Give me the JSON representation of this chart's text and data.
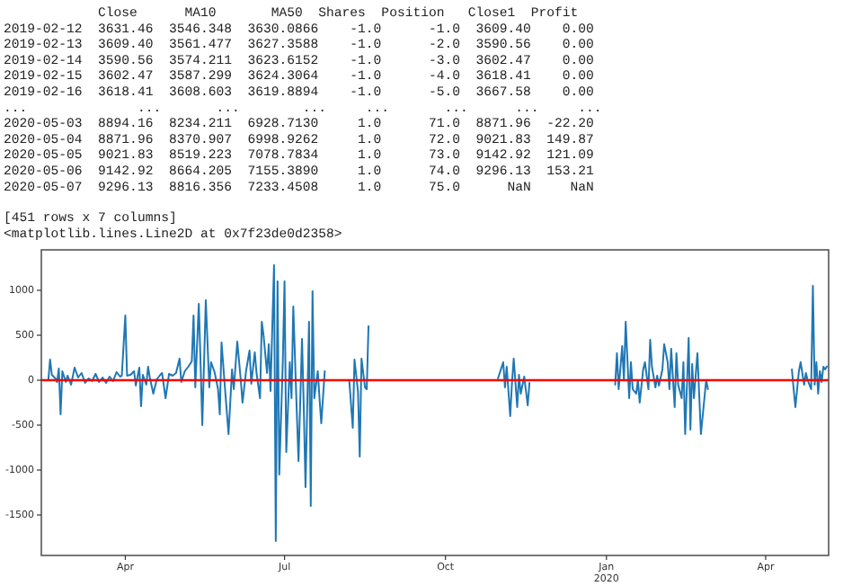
{
  "chart_data": {
    "type": "line",
    "annotations": [
      "            Close      MA10       MA50  Shares  Position   Close1  Profit",
      "2019-02-12  3631.46  3546.348  3630.0866    -1.0      -1.0  3609.40    0.00",
      "2019-02-13  3609.40  3561.477  3627.3588    -1.0      -2.0  3590.56    0.00",
      "2019-02-14  3590.56  3574.211  3623.6152    -1.0      -3.0  3602.47    0.00",
      "2019-02-15  3602.47  3587.299  3624.3064    -1.0      -4.0  3618.41    0.00",
      "2019-02-16  3618.41  3608.603  3619.8894    -1.0      -5.0  3667.58    0.00",
      "...              ...       ...        ...     ...       ...      ...     ...",
      "2020-05-03  8894.16  8234.211  6928.7130     1.0      71.0  8871.96  -22.20",
      "2020-05-04  8871.96  8370.907  6998.9262     1.0      72.0  9021.83  149.87",
      "2020-05-05  9021.83  8519.223  7078.7834     1.0      73.0  9142.92  121.09",
      "2020-05-06  9142.92  8664.205  7155.3890     1.0      74.0  9296.13  153.21",
      "2020-05-07  9296.13  8816.356  7233.4508     1.0      75.0      NaN     NaN",
      "[451 rows x 7 columns]",
      "<matplotlib.lines.Line2D at 0x7f23de0d2358>"
    ],
    "x": [
      "2019-02-12",
      "2019-02-13",
      "2019-02-14",
      "2019-02-15",
      "2019-02-16",
      "2019-02-17",
      "2019-02-18",
      "2019-02-20",
      "2019-02-21",
      "2019-02-22",
      "2019-02-23",
      "2019-02-24",
      "2019-02-26",
      "2019-02-27",
      "2019-03-01",
      "2019-03-03",
      "2019-03-05",
      "2019-03-07",
      "2019-03-09",
      "2019-03-11",
      "2019-03-13",
      "2019-03-15",
      "2019-03-17",
      "2019-03-19",
      "2019-03-21",
      "2019-03-23",
      "2019-03-25",
      "2019-03-27",
      "2019-03-29",
      "2019-03-30",
      "2019-04-01",
      "2019-04-02",
      "2019-04-04",
      "2019-04-06",
      "2019-04-07",
      "2019-04-09",
      "2019-04-10",
      "2019-04-11",
      "2019-04-13",
      "2019-04-14",
      "2019-04-15",
      "2019-04-17",
      "2019-04-19",
      "2019-04-21",
      "2019-04-22",
      "2019-04-24",
      "2019-04-26",
      "2019-04-28",
      "2019-04-30",
      "2019-05-02",
      "2019-05-03",
      "2019-05-05",
      "2019-05-07",
      "2019-05-09",
      "2019-05-10",
      "2019-05-11",
      "2019-05-13",
      "2019-05-14",
      "2019-05-15",
      "2019-05-17",
      "2019-05-19",
      "2019-05-20",
      "2019-05-22",
      "2019-05-24",
      "2019-05-25",
      "2019-05-26",
      "2019-05-28",
      "2019-05-30",
      "2019-06-01",
      "2019-06-02",
      "2019-06-04",
      "2019-06-06",
      "2019-06-07",
      "2019-06-09",
      "2019-06-11",
      "2019-06-12",
      "2019-06-14",
      "2019-06-15",
      "2019-06-17",
      "2019-06-18",
      "2019-06-19",
      "2019-06-21",
      "2019-06-22",
      "2019-06-23",
      "2019-06-25",
      "2019-06-26",
      "2019-06-27",
      "2019-06-28",
      "2019-06-30",
      "2019-07-01",
      "2019-07-02",
      "2019-07-04",
      "2019-07-05",
      "2019-07-06",
      "2019-07-08",
      "2019-07-09",
      "2019-07-11",
      "2019-07-12",
      "2019-07-13",
      "2019-07-15",
      "2019-07-16",
      "2019-07-17",
      "2019-07-18",
      "2019-07-20",
      "2019-07-21",
      "2019-07-22",
      "2019-07-24",
      "2019-07-30",
      "2019-08-07",
      "2019-08-09",
      "2019-08-10",
      "2019-08-12",
      "2019-08-13",
      "2019-08-14",
      "2019-08-16",
      "2019-08-17",
      "2019-08-18",
      "2019-09-15",
      "2019-10-31",
      "2019-11-01",
      "2019-11-03",
      "2019-11-04",
      "2019-11-05",
      "2019-11-07",
      "2019-11-08",
      "2019-11-09",
      "2019-11-11",
      "2019-11-12",
      "2019-11-13",
      "2019-11-15",
      "2019-11-16",
      "2019-11-17",
      "2019-11-18",
      "2019-12-15",
      "2020-01-06",
      "2020-01-07",
      "2020-01-08",
      "2020-01-10",
      "2020-01-11",
      "2020-01-12",
      "2020-01-14",
      "2020-01-15",
      "2020-01-16",
      "2020-01-18",
      "2020-01-19",
      "2020-01-20",
      "2020-01-22",
      "2020-01-23",
      "2020-01-25",
      "2020-01-26",
      "2020-01-27",
      "2020-01-29",
      "2020-01-30",
      "2020-01-31",
      "2020-02-02",
      "2020-02-03",
      "2020-02-05",
      "2020-02-06",
      "2020-02-07",
      "2020-02-09",
      "2020-02-10",
      "2020-02-11",
      "2020-02-13",
      "2020-02-14",
      "2020-02-15",
      "2020-02-17",
      "2020-02-18",
      "2020-02-19",
      "2020-02-20",
      "2020-02-22",
      "2020-02-23",
      "2020-02-24",
      "2020-02-26",
      "2020-02-27",
      "2020-02-28",
      "2020-03-20",
      "2020-04-16",
      "2020-04-17",
      "2020-04-18",
      "2020-04-20",
      "2020-04-21",
      "2020-04-23",
      "2020-04-24",
      "2020-04-25",
      "2020-04-27",
      "2020-04-28",
      "2020-04-29",
      "2020-04-30",
      "2020-05-01",
      "2020-05-02",
      "2020-05-03",
      "2020-05-04",
      "2020-05-05",
      "2020-05-06"
    ],
    "series": [
      {
        "color": "#1f77b4",
        "values": [
          0,
          0,
          0,
          0,
          0,
          230,
          60,
          20,
          -20,
          130,
          -380,
          100,
          -20,
          50,
          -50,
          140,
          30,
          80,
          -30,
          20,
          -10,
          70,
          -20,
          30,
          -30,
          40,
          -10,
          90,
          40,
          50,
          720,
          50,
          60,
          100,
          -60,
          140,
          -290,
          60,
          -50,
          150,
          30,
          -150,
          10,
          60,
          80,
          -200,
          70,
          50,
          80,
          240,
          -20,
          100,
          150,
          210,
          720,
          -80,
          850,
          200,
          -500,
          890,
          -80,
          200,
          90,
          -100,
          -380,
          420,
          -100,
          -600,
          120,
          -100,
          430,
          0,
          -250,
          100,
          330,
          -40,
          310,
          80,
          -200,
          650,
          500,
          80,
          400,
          -120,
          1280,
          -1790,
          1100,
          -1050,
          200,
          1100,
          -800,
          200,
          -200,
          820,
          -350,
          -900,
          460,
          -300,
          -1190,
          650,
          -1400,
          990,
          -200,
          100,
          -200,
          -480,
          100,
          null,
          0,
          -530,
          230,
          -130,
          -850,
          240,
          -80,
          -100,
          600,
          null,
          20,
          80,
          200,
          -80,
          150,
          -400,
          -30,
          240,
          -300,
          60,
          -150,
          40,
          -120,
          -280,
          -30,
          null,
          -50,
          300,
          -100,
          380,
          0,
          650,
          -200,
          200,
          -100,
          -150,
          0,
          -250,
          120,
          200,
          -100,
          450,
          150,
          -80,
          50,
          -60,
          120,
          400,
          200,
          -100,
          350,
          -300,
          300,
          -50,
          -200,
          200,
          -600,
          470,
          -550,
          180,
          -200,
          300,
          -150,
          -600,
          -200,
          0,
          -100,
          null,
          120,
          -100,
          -300,
          100,
          200,
          -50,
          80,
          0,
          -100,
          1050,
          -50,
          200,
          -150,
          100,
          -22,
          150,
          121,
          153
        ]
      }
    ],
    "xlim": [
      "2019-02-12",
      "2020-05-07"
    ],
    "xticks": [
      {
        "value": "2019-04-01",
        "label": "Apr"
      },
      {
        "value": "2019-07-01",
        "label": "Jul"
      },
      {
        "value": "2019-10-01",
        "label": "Oct"
      },
      {
        "value": "2020-01-01",
        "label": "Jan\n2020"
      },
      {
        "value": "2020-04-01",
        "label": "Apr"
      }
    ],
    "ylim": [
      -1950,
      1450
    ],
    "yticks": [
      -1500,
      -1000,
      -500,
      0,
      500,
      1000
    ],
    "ref_lines": [
      {
        "axis": "y",
        "value": 0,
        "color": "#ff0000"
      }
    ]
  }
}
